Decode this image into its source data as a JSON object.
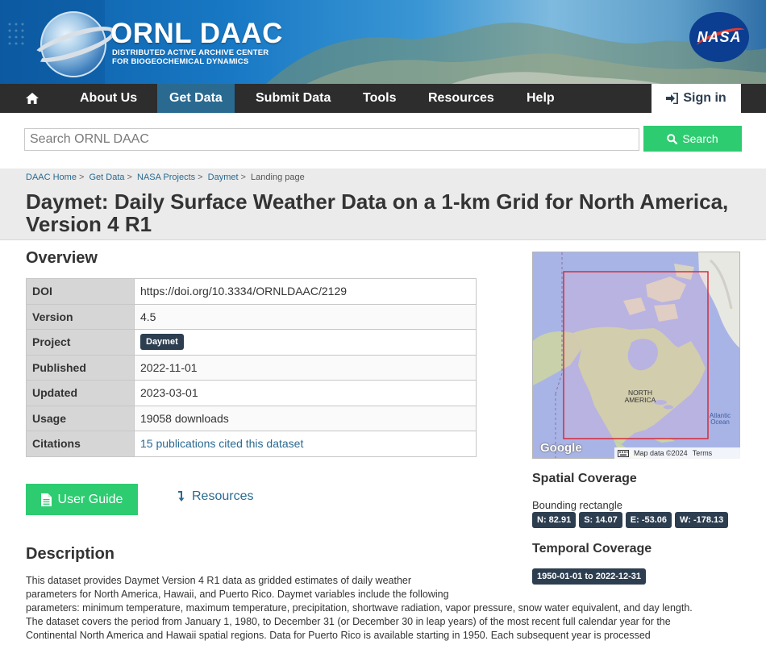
{
  "colors": {
    "nav_bg": "#2d2d2d",
    "nav_active": "#2a6a91",
    "accent_green": "#2ecc71",
    "badge": "#2d3e50",
    "link": "#2a6a91"
  },
  "banner": {
    "title": "ORNL DAAC",
    "subtitle_line1": "DISTRIBUTED ACTIVE ARCHIVE CENTER",
    "subtitle_line2": "FOR BIOGEOCHEMICAL DYNAMICS",
    "nasa_logo_text": "NASA"
  },
  "nav": {
    "home_icon": "home-icon",
    "items": [
      "About Us",
      "Get Data",
      "Submit Data",
      "Tools",
      "Resources",
      "Help"
    ],
    "active": "Get Data",
    "signin_label": "Sign in",
    "signin_icon": "sign-in-icon"
  },
  "search": {
    "placeholder": "Search ORNL DAAC",
    "value": "",
    "button_label": "Search",
    "button_icon": "search-icon"
  },
  "breadcrumb": [
    "DAAC Home",
    "Get Data",
    "NASA Projects",
    "Daymet",
    "Landing page"
  ],
  "page_title": "Daymet: Daily Surface Weather Data on a 1-km Grid for North America, Version 4 R1",
  "overview": {
    "heading": "Overview",
    "rows": [
      {
        "label": "DOI",
        "value": "https://doi.org/10.3334/ORNLDAAC/2129"
      },
      {
        "label": "Version",
        "value": "4.5"
      },
      {
        "label": "Project",
        "value": "Daymet"
      },
      {
        "label": "Published",
        "value": "2022-11-01"
      },
      {
        "label": "Updated",
        "value": "2023-03-01"
      },
      {
        "label": "Usage",
        "value": "19058 downloads"
      },
      {
        "label": "Citations",
        "value": "15 publications cited this dataset"
      }
    ]
  },
  "buttons": {
    "user_guide": "User Guide",
    "user_guide_icon": "document-icon",
    "resources": "Resources",
    "resources_icon": "arrow-down-icon"
  },
  "description": {
    "heading": "Description",
    "lines": [
      "This dataset provides Daymet Version 4 R1 data as gridded estimates of daily weather",
      "parameters for North America, Hawaii, and Puerto Rico. Daymet variables include the following",
      "parameters: minimum temperature, maximum temperature, precipitation, shortwave radiation, vapor pressure, snow water equivalent, and day length.",
      "The dataset covers the period from January 1, 1980, to December 31 (or December 30 in leap years) of the most recent full calendar year for the",
      "Continental North America and Hawaii spatial regions. Data for Puerto Rico is available starting in 1950. Each subsequent year is processed"
    ]
  },
  "map": {
    "label_region": "NORTH AMERICA",
    "label_ocean": "Atlantic Ocean",
    "google": "Google",
    "attribution": "Map data ©2024",
    "terms": "Terms",
    "keyboard_icon": "keyboard-icon"
  },
  "spatial": {
    "heading": "Spatial Coverage",
    "bbox_label": "Bounding rectangle",
    "coords": [
      "N: 82.91",
      "S: 14.07",
      "E: -53.06",
      "W: -178.13"
    ]
  },
  "temporal": {
    "heading": "Temporal Coverage",
    "range": "1950-01-01 to 2022-12-31"
  }
}
